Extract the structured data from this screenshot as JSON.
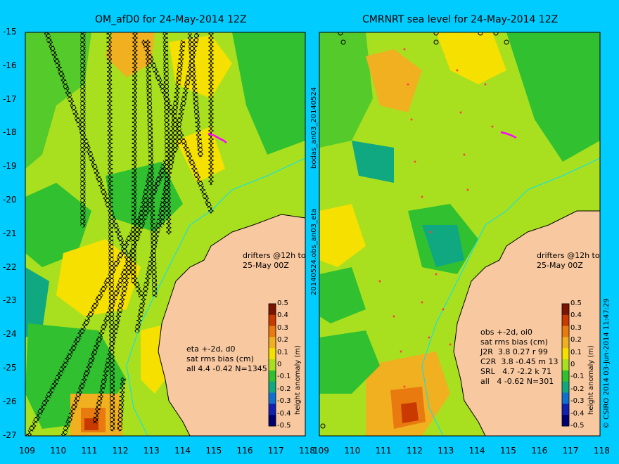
{
  "titles": {
    "left": "OM_afD0 for 24-May-2014 12Z",
    "right": "CMRNRT sea level  for 24-May-2014 12Z"
  },
  "axes": {
    "lat_ticks": [
      "-15",
      "-16",
      "-17",
      "-18",
      "-19",
      "-20",
      "-21",
      "-22",
      "-23",
      "-24",
      "-25",
      "-26",
      "-27"
    ],
    "lon_ticks": [
      "109",
      "110",
      "111",
      "112",
      "113",
      "114",
      "115",
      "116",
      "117",
      "118"
    ]
  },
  "side_labels": {
    "top": "bodas_an03_20140524",
    "bottom": "20140524.obs_an03_eta",
    "credit": "© CSIRO 2014   03-Jun-2014 11:47:29"
  },
  "left_panel": {
    "drifters": "drifters @12h to\n25-May 00Z",
    "stats": "eta +-2d, d0\nsat rms bias (cm)\nall 4.4 -0.42 N=1345"
  },
  "right_panel": {
    "drifters": "drifters @12h to\n25-May 00Z",
    "stats": "obs +-2d, oi0\nsat rms bias (cm)\nJ2R  3.8 0.27 r 99\nC2R  3.8 -0.45 m 13\nSRL   4.7 -2.2 k 71\nall   4 -0.62 N=301"
  },
  "colorbar": {
    "label": "height anomaly (m)",
    "ticks": [
      "0.5",
      "0.4",
      "0.3",
      "0.2",
      "0.1",
      "0",
      "-0.1",
      "-0.2",
      "-0.3",
      "-0.4",
      "-0.5"
    ],
    "colors": [
      "#7a1500",
      "#c83a00",
      "#e87a10",
      "#f0b020",
      "#f5e000",
      "#a8e020",
      "#30c030",
      "#10a880",
      "#1070d0",
      "#1020b0",
      "#000070"
    ]
  },
  "colors": {
    "background": "#00ccff",
    "land": "#f8c8a0",
    "coast": "#000000"
  }
}
